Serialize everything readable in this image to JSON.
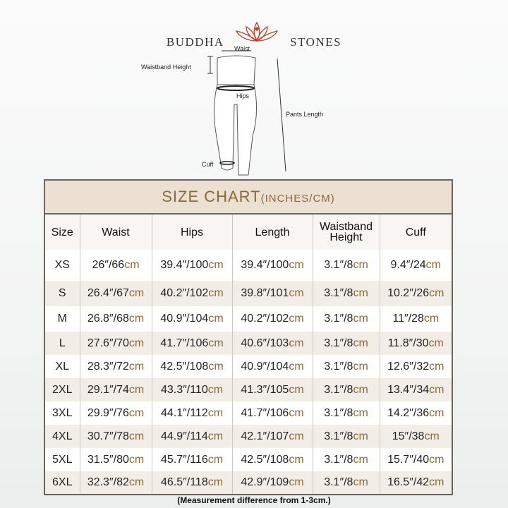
{
  "brand": {
    "left": "BUDDHA",
    "right": "STONES",
    "logo": "lotus-meditation-logo"
  },
  "diagram": {
    "waist": "Waist",
    "waistband_height": "Waistband Height",
    "hips": "Hips",
    "pants_length": "Pants Length",
    "cuff": "Cuff"
  },
  "table": {
    "title": "SIZE CHART",
    "title_units": "(INCHES/CM)",
    "unit": "cm",
    "headers": [
      "Size",
      "Waist",
      "Hips",
      "Length",
      "Waistband Height",
      "Cuff"
    ],
    "rows": [
      {
        "size": "XS",
        "waist": "26″/66",
        "hips": "39.4″/100",
        "length": "39.4″/100",
        "waistband": "3.1″/8",
        "cuff": "9.4″/24"
      },
      {
        "size": "S",
        "waist": "26.4″/67",
        "hips": "40.2″/102",
        "length": "39.8″/101",
        "waistband": "3.1″/8",
        "cuff": "10.2″/26"
      },
      {
        "size": "M",
        "waist": "26.8″/68",
        "hips": "40.9″/104",
        "length": "40.2″/102",
        "waistband": "3.1″/8",
        "cuff": "11″/28"
      },
      {
        "size": "L",
        "waist": "27.6″/70",
        "hips": "41.7″/106",
        "length": "40.6″/103",
        "waistband": "3.1″/8",
        "cuff": "11.8″/30"
      },
      {
        "size": "XL",
        "waist": "28.3″/72",
        "hips": "42.5″/108",
        "length": "40.9″/104",
        "waistband": "3.1″/8",
        "cuff": "12.6″/32"
      },
      {
        "size": "2XL",
        "waist": "29.1″/74",
        "hips": "43.3″/110",
        "length": "41.3″/105",
        "waistband": "3.1″/8",
        "cuff": "13.4″/34"
      },
      {
        "size": "3XL",
        "waist": "29.9″/76",
        "hips": "44.1″/112",
        "length": "41.7″/106",
        "waistband": "3.1″/8",
        "cuff": "14.2″/36"
      },
      {
        "size": "4XL",
        "waist": "30.7″/78",
        "hips": "44.9″/114",
        "length": "42.1″/107",
        "waistband": "3.1″/8",
        "cuff": "15″/38"
      },
      {
        "size": "5XL",
        "waist": "31.5″/80",
        "hips": "45.7″/116",
        "length": "42.5″/108",
        "waistband": "3.1″/8",
        "cuff": "15.7″/40"
      },
      {
        "size": "6XL",
        "waist": "32.3″/82",
        "hips": "46.5″/118",
        "length": "42.9″/109",
        "waistband": "3.1″/8",
        "cuff": "16.5″/42"
      }
    ]
  },
  "note": "(Measurement difference from 1-3cm.)",
  "colors": {
    "accent": "#8a6a3a",
    "title_bg": "#ece0d2",
    "logo": "#b5452f"
  }
}
